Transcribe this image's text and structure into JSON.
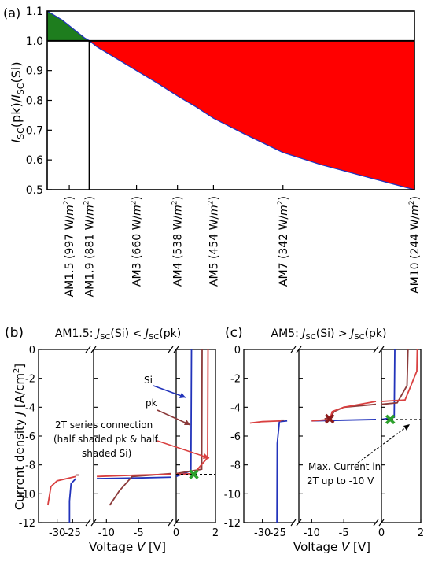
{
  "chart_data": [
    {
      "panel": "(a)",
      "type": "area",
      "ylabel": "I_SC(pk)/I_SC(Si)",
      "ylabel_parts": {
        "main": "I",
        "sub1": "SC",
        "mid": "(pk)/",
        "main2": "I",
        "sub2": "SC",
        "end": "(Si)"
      },
      "xlabel": "",
      "ylim": [
        0.5,
        1.1
      ],
      "yticks": [
        "0.5",
        "0.6",
        "0.7",
        "0.8",
        "0.9",
        "1.0",
        "1.1"
      ],
      "xlim": [
        0,
        1
      ],
      "categories": [
        {
          "label": "AM1.5 (997 W/m²)",
          "text": "AM1.5 (997 W/",
          "x": 0.089
        },
        {
          "label": "AM1.9 (881 W/m²)",
          "text": "AM1.9 (881 W/",
          "x": 0.17
        },
        {
          "label": "AM3 (660 W/m²)",
          "text": "AM3 (660 W/",
          "x": 0.36
        },
        {
          "label": "AM4 (538 W/m²)",
          "text": "AM4 (538 W/",
          "x": 0.525
        },
        {
          "label": "AM5 (454 W/m²)",
          "text": "AM5 (454 W/",
          "x": 0.67
        },
        {
          "label": "AM7 (342 W/m²)",
          "text": "AM7 (342 W/",
          "x": 0.95
        },
        {
          "label": "AM10 (244 W/m²)",
          "text": "AM10 (244 W/",
          "x": 1.48
        }
      ],
      "series": [
        {
          "values_x": [
            0.0,
            0.03,
            0.06,
            0.09,
            0.12,
            0.15,
            0.17,
            0.2,
            0.25,
            0.3,
            0.36,
            0.44,
            0.525,
            0.6,
            0.67,
            0.8,
            0.95,
            1.1,
            1.3,
            1.48
          ],
          "values_y": [
            1.1,
            1.085,
            1.07,
            1.05,
            1.03,
            1.01,
            1.0,
            0.98,
            0.955,
            0.93,
            0.9,
            0.86,
            0.815,
            0.778,
            0.74,
            0.685,
            0.625,
            0.585,
            0.54,
            0.5
          ]
        }
      ],
      "reference_line": 1.0,
      "fill_colors": {
        "above": "#1e7d1e",
        "below": "#ff0000",
        "line": "#2233bb"
      }
    },
    {
      "panel": "(b)",
      "type": "line",
      "title": "AM1.5: J_SC(Si) < J_SC(pk)",
      "title_parts": {
        "pre": "AM1.5: ",
        "j1": "J",
        "sub1": "SC",
        "mid": "(Si) < ",
        "j2": "J",
        "sub2": "SC",
        "end": "(pk)"
      },
      "ylabel": "Current density J [A/cm²]",
      "ylabel_parts": {
        "pre": "Current density ",
        "j": "J",
        "post": " [A/cm",
        "sup": "2",
        "end": "]"
      },
      "xlabel": "Voltage V [V]",
      "xlabel_parts": {
        "pre": "Voltage ",
        "v": "V",
        "post": " [V]"
      },
      "ylim": [
        -12,
        0
      ],
      "yticks": [
        "0",
        "-2",
        "-4",
        "-6",
        "-8",
        "-10",
        "-12"
      ],
      "xticks_left": [
        "-30",
        "-25"
      ],
      "xticks_mid": [
        "-10",
        "-5"
      ],
      "xticks_right": [
        "0",
        "2"
      ],
      "annotations": [
        {
          "text": "Si"
        },
        {
          "text": "pk"
        },
        {
          "text": "2T series connection"
        },
        {
          "text": "(half shaded pk & half"
        },
        {
          "text": "shaded Si)"
        }
      ],
      "series": [
        {
          "name": "Si",
          "color": "#2233bb",
          "left": [
            [
              -26,
              -12
            ],
            [
              -26,
              -10.5
            ],
            [
              -25.5,
              -9.3
            ],
            [
              -24,
              -8.95
            ]
          ],
          "mid": [
            [
              -11.5,
              -8.95
            ],
            [
              -5,
              -8.9
            ],
            [
              0,
              -8.85
            ]
          ],
          "right": [
            [
              0,
              -8.8
            ],
            [
              0.75,
              -8.4
            ],
            [
              0.78,
              0
            ]
          ]
        },
        {
          "name": "pk",
          "color": "#8b3a3a",
          "left": [
            [
              -24,
              -8.7
            ]
          ],
          "mid": [
            [
              -9.5,
              -10.8
            ],
            [
              -8,
              -9.8
            ],
            [
              -6,
              -8.8
            ],
            [
              0,
              -8.6
            ]
          ],
          "right": [
            [
              0,
              -8.6
            ],
            [
              1.3,
              -8.3
            ],
            [
              1.32,
              0
            ]
          ]
        },
        {
          "name": "2T",
          "color": "#d94040",
          "left": [
            [
              -33,
              -10.8
            ],
            [
              -32,
              -9.5
            ],
            [
              -30,
              -9.1
            ],
            [
              -24,
              -8.8
            ]
          ],
          "mid": [
            [
              -11.5,
              -8.8
            ],
            [
              -5,
              -8.7
            ],
            [
              0,
              -8.65
            ]
          ],
          "right": [
            [
              0,
              -8.65
            ],
            [
              0.9,
              -8.6
            ],
            [
              1.6,
              -7.5
            ],
            [
              1.62,
              0
            ]
          ]
        }
      ],
      "marker": {
        "x": 0.9,
        "y": -8.65,
        "color": "#2ca02c"
      },
      "dashed": {
        "y": -8.65
      }
    },
    {
      "panel": "(c)",
      "type": "line",
      "title": "AM5: J_SC(Si) > J_SC(pk)",
      "title_parts": {
        "pre": "AM5: ",
        "j1": "J",
        "sub1": "SC",
        "mid": "(Si) > ",
        "j2": "J",
        "sub2": "SC",
        "end": "(pk)"
      },
      "xlabel": "Voltage V [V]",
      "xlabel_parts": {
        "pre": "Voltage ",
        "v": "V",
        "post": " [V]"
      },
      "ylim": [
        -12,
        0
      ],
      "yticks": [
        "0",
        "-2",
        "-4",
        "-6",
        "-8",
        "-10",
        "-12"
      ],
      "xticks_left": [
        "-30",
        "-25"
      ],
      "xticks_mid": [
        "-10",
        "-5"
      ],
      "xticks_right": [
        "0",
        "2"
      ],
      "annotations": [
        {
          "text": "Max. Current in"
        },
        {
          "text": "2T up to -10 V"
        }
      ],
      "series": [
        {
          "name": "Si",
          "color": "#2233bb",
          "left": [
            [
              -25.3,
              -12
            ],
            [
              -25.2,
              -6.5
            ],
            [
              -24.5,
              -5.0
            ],
            [
              -22,
              -4.95
            ]
          ],
          "mid": [
            [
              -10,
              -4.95
            ],
            [
              -5,
              -4.9
            ],
            [
              0,
              -4.85
            ]
          ],
          "right": [
            [
              0,
              -4.85
            ],
            [
              0.65,
              -4.7
            ],
            [
              0.68,
              0
            ]
          ]
        },
        {
          "name": "pk",
          "color": "#8b3a3a",
          "left": [
            [
              -24,
              -4.9
            ]
          ],
          "mid": [
            [
              -8,
              -4.8
            ],
            [
              -7.2,
              -4.75
            ],
            [
              -6.5,
              -4.3
            ],
            [
              -5,
              -4.0
            ],
            [
              0,
              -3.8
            ]
          ],
          "right": [
            [
              0,
              -3.8
            ],
            [
              0.8,
              -3.7
            ],
            [
              1.3,
              -2.5
            ],
            [
              1.35,
              0
            ]
          ]
        },
        {
          "name": "2T",
          "color": "#d94040",
          "left": [
            [
              -34,
              -5.1
            ],
            [
              -30,
              -5.0
            ],
            [
              -24,
              -4.95
            ]
          ],
          "mid": [
            [
              -10,
              -4.95
            ],
            [
              -7.2,
              -4.85
            ],
            [
              -6.8,
              -4.3
            ],
            [
              -5,
              -4.0
            ],
            [
              0,
              -3.6
            ]
          ],
          "right": [
            [
              0,
              -3.6
            ],
            [
              1.2,
              -3.5
            ],
            [
              1.8,
              -1.5
            ],
            [
              1.82,
              0
            ]
          ]
        }
      ],
      "markers": [
        {
          "x": -7.2,
          "y": -4.8,
          "color": "#8b1a1a"
        },
        {
          "x": 0.45,
          "y": -4.85,
          "color": "#2ca02c"
        }
      ],
      "dashed": {
        "y": -4.85
      }
    }
  ]
}
